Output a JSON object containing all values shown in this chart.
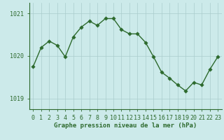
{
  "x": [
    0,
    1,
    2,
    3,
    4,
    5,
    6,
    7,
    8,
    9,
    10,
    11,
    12,
    13,
    14,
    15,
    16,
    17,
    18,
    19,
    20,
    21,
    22,
    23
  ],
  "y": [
    1019.75,
    1020.2,
    1020.35,
    1020.25,
    1019.98,
    1020.45,
    1020.68,
    1020.82,
    1020.72,
    1020.88,
    1020.88,
    1020.62,
    1020.52,
    1020.52,
    1020.32,
    1019.98,
    1019.62,
    1019.48,
    1019.32,
    1019.18,
    1019.38,
    1019.32,
    1019.68,
    1019.98
  ],
  "line_color": "#2d6a2d",
  "marker_color": "#2d6a2d",
  "bg_color": "#cceaea",
  "grid_color": "#aacccc",
  "axis_color": "#2d6a2d",
  "tick_label_color": "#2d6a2d",
  "xlabel": "Graphe pression niveau de la mer (hPa)",
  "ylim": [
    1018.75,
    1021.25
  ],
  "yticks": [
    1019,
    1020,
    1021
  ],
  "xticks": [
    0,
    1,
    2,
    3,
    4,
    5,
    6,
    7,
    8,
    9,
    10,
    11,
    12,
    13,
    14,
    15,
    16,
    17,
    18,
    19,
    20,
    21,
    22,
    23
  ],
  "xlabel_fontsize": 6.5,
  "tick_fontsize": 6.0,
  "line_width": 1.0,
  "marker_size": 2.8
}
